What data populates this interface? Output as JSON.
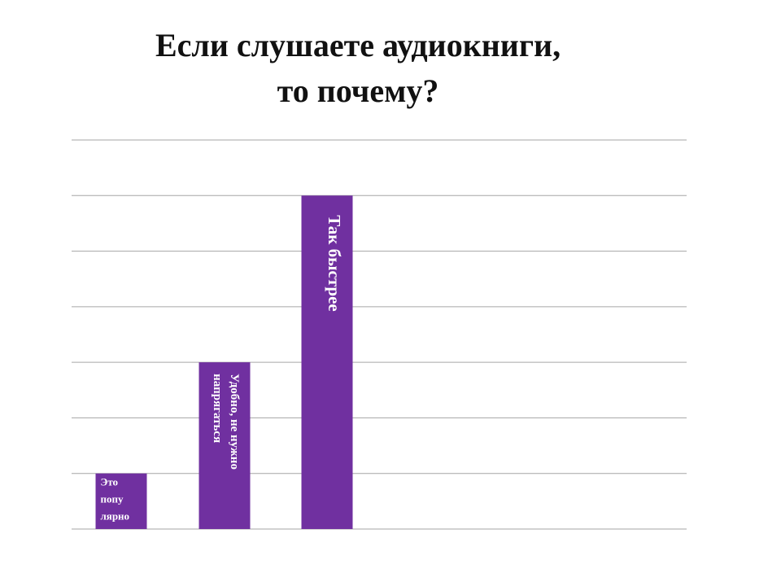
{
  "slide": {
    "title_line1": "Если слушаете аудиокниги,",
    "title_line2": "то почему?"
  },
  "chart_data": {
    "type": "bar",
    "title": "Если слушаете аудиокниги, то почему?",
    "categories": [
      "Это популярно",
      "Удобно, не нужно напрягаться",
      "Так быстрее"
    ],
    "values": [
      1,
      3,
      6
    ],
    "ylim": [
      0,
      7
    ],
    "grid": true,
    "legend": "none",
    "bar_color": "#7030A0",
    "grid_color": "#A6A6A6"
  }
}
